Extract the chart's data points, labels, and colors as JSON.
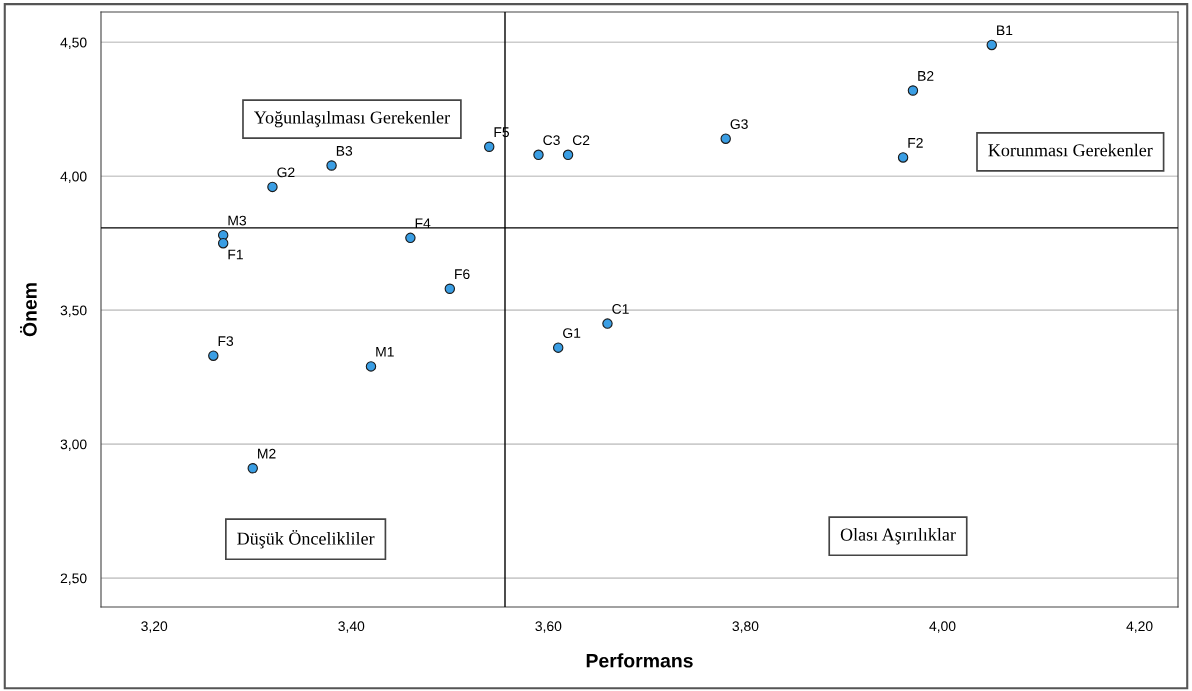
{
  "chart_data": {
    "type": "scatter",
    "xlabel": "Performans",
    "ylabel": "Önem",
    "x": [
      3.27,
      3.27,
      3.32,
      3.38,
      3.46,
      3.5,
      3.54,
      3.59,
      3.62,
      3.61,
      3.26,
      3.42,
      3.3,
      3.78,
      3.97,
      3.96,
      4.05,
      3.66
    ],
    "series": [
      {
        "color": "#3a9ee4",
        "values": [
          3.78,
          3.75,
          3.96,
          4.04,
          3.77,
          3.58,
          4.11,
          4.08,
          4.08,
          3.36,
          3.33,
          3.29,
          2.91,
          4.14,
          4.32,
          4.07,
          4.49,
          3.45
        ]
      }
    ],
    "marker": "circle",
    "xlim": [
      3.146,
      4.239
    ],
    "ylim": [
      2.392,
      4.613
    ],
    "xticks": [
      {
        "value": 3.2,
        "label": "3,20"
      },
      {
        "value": 3.4,
        "label": "3,40"
      },
      {
        "value": 3.6,
        "label": "3,60"
      },
      {
        "value": 3.8,
        "label": "3,80"
      },
      {
        "value": 4.0,
        "label": "4,00"
      },
      {
        "value": 4.2,
        "label": "4,20"
      }
    ],
    "yticks": [
      {
        "value": 2.5,
        "label": "2,50"
      },
      {
        "value": 3.0,
        "label": "3,00"
      },
      {
        "value": 3.5,
        "label": "3,50"
      },
      {
        "value": 4.0,
        "label": "4,00"
      },
      {
        "value": 4.5,
        "label": "4,50"
      }
    ],
    "grid": "y",
    "ref_lines": [
      {
        "axis": "x",
        "value": 3.556,
        "color": "#000000"
      },
      {
        "axis": "y",
        "value": 3.807,
        "color": "#000000"
      }
    ],
    "annotations": [
      {
        "text": "M3",
        "x": 3.27,
        "y": 3.78
      },
      {
        "text": "F1",
        "x": 3.27,
        "y": 3.75
      },
      {
        "text": "G2",
        "x": 3.32,
        "y": 3.96
      },
      {
        "text": "B3",
        "x": 3.38,
        "y": 4.04
      },
      {
        "text": "F4",
        "x": 3.46,
        "y": 3.77
      },
      {
        "text": "F6",
        "x": 3.5,
        "y": 3.58
      },
      {
        "text": "F5",
        "x": 3.54,
        "y": 4.11
      },
      {
        "text": "C3",
        "x": 3.59,
        "y": 4.08
      },
      {
        "text": "C2",
        "x": 3.62,
        "y": 4.08
      },
      {
        "text": "G1",
        "x": 3.61,
        "y": 3.36
      },
      {
        "text": "F3",
        "x": 3.26,
        "y": 3.33
      },
      {
        "text": "M1",
        "x": 3.42,
        "y": 3.29
      },
      {
        "text": "M2",
        "x": 3.3,
        "y": 2.91
      },
      {
        "text": "G3",
        "x": 3.78,
        "y": 4.14
      },
      {
        "text": "B2",
        "x": 3.97,
        "y": 4.32
      },
      {
        "text": "F2",
        "x": 3.96,
        "y": 4.07
      },
      {
        "text": "B1",
        "x": 4.05,
        "y": 4.49
      },
      {
        "text": "C1",
        "x": 3.66,
        "y": 3.45
      },
      "Yoğunlaşılması Gerekenler",
      "Korunması Gerekenler",
      "Düşük Öncelikliler",
      "Olası Aşırılıklar"
    ]
  }
}
